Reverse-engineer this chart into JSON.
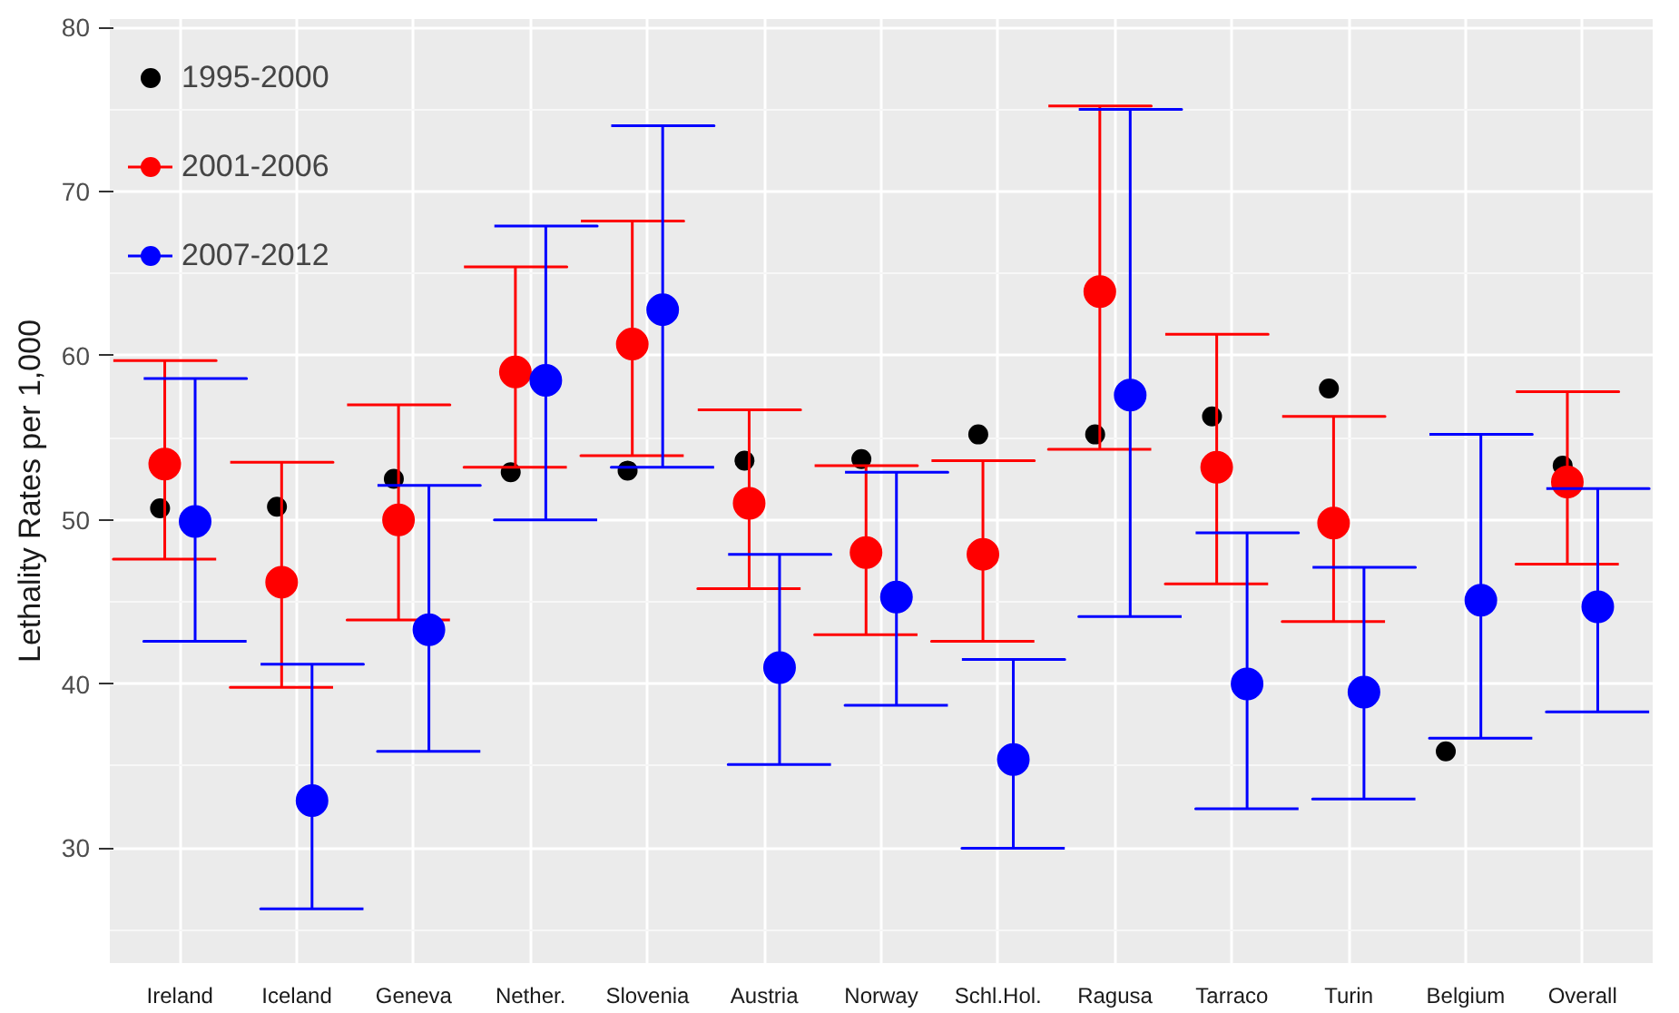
{
  "chart_data": {
    "type": "scatter",
    "ylabel": "Lethality Rates per 1,000",
    "categories": [
      "Ireland",
      "Iceland",
      "Geneva",
      "Nether.",
      "Slovenia",
      "Austria",
      "Norway",
      "Schl.Hol.",
      "Ragusa",
      "Tarraco",
      "Turin",
      "Belgium",
      "Overall"
    ],
    "ylim": [
      23,
      80.5
    ],
    "yticks": [
      30,
      40,
      50,
      60,
      70,
      80
    ],
    "grid": true,
    "legend": "top left",
    "marker": "circle",
    "series": [
      {
        "name": "1995-2000",
        "color": "#000000",
        "values": [
          50.7,
          50.8,
          52.5,
          52.9,
          53.0,
          53.6,
          53.7,
          55.2,
          55.2,
          56.3,
          58.0,
          35.9,
          53.3
        ]
      },
      {
        "name": "2001-2006",
        "color": "#ff0000",
        "values": [
          53.4,
          46.2,
          50.0,
          59.0,
          60.7,
          51.0,
          48.0,
          47.9,
          63.9,
          53.2,
          49.8,
          null,
          52.3
        ],
        "errors": [
          [
            47.6,
            59.7
          ],
          [
            39.8,
            53.5
          ],
          [
            43.9,
            57.0
          ],
          [
            53.2,
            65.4
          ],
          [
            53.9,
            68.2
          ],
          [
            45.8,
            56.7
          ],
          [
            43.0,
            53.3
          ],
          [
            42.6,
            53.6
          ],
          [
            54.3,
            75.2
          ],
          [
            46.1,
            61.3
          ],
          [
            43.8,
            56.3
          ],
          null,
          [
            47.3,
            57.8
          ]
        ]
      },
      {
        "name": "2007-2012",
        "color": "#0000ff",
        "values": [
          49.9,
          32.9,
          43.3,
          58.5,
          62.8,
          41.0,
          45.3,
          35.4,
          57.6,
          40.0,
          39.5,
          45.1,
          44.7
        ],
        "errors": [
          [
            42.6,
            58.6
          ],
          [
            26.3,
            41.2
          ],
          [
            35.9,
            52.1
          ],
          [
            50.0,
            67.9
          ],
          [
            53.2,
            74.0
          ],
          [
            35.1,
            47.9
          ],
          [
            38.7,
            52.9
          ],
          [
            30.0,
            41.5
          ],
          [
            44.1,
            75.0
          ],
          [
            32.4,
            49.2
          ],
          [
            33.0,
            47.1
          ],
          [
            36.7,
            55.2
          ],
          [
            38.3,
            51.9
          ]
        ]
      }
    ]
  }
}
